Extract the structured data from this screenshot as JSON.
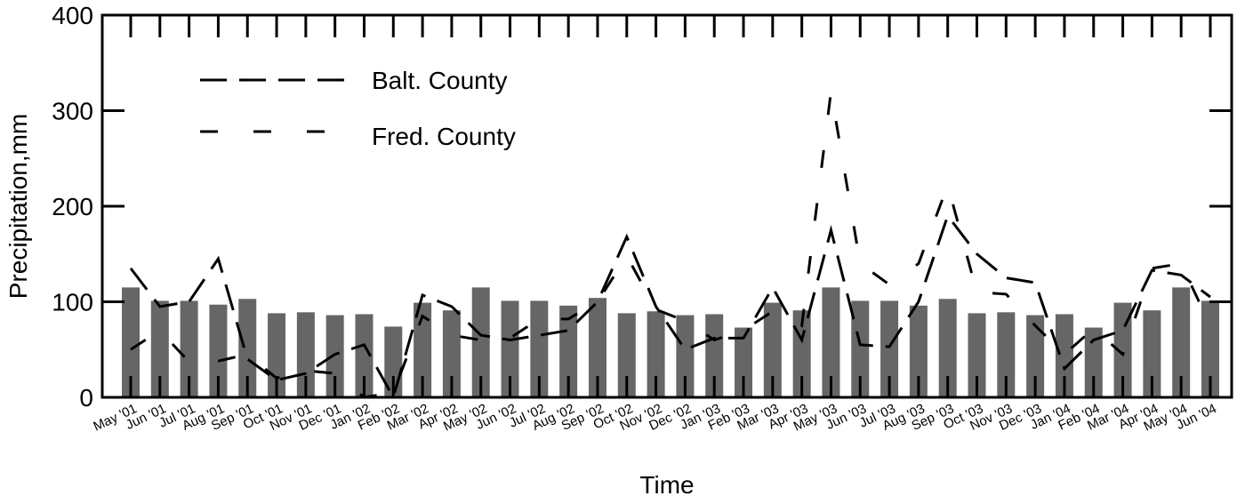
{
  "chart_data": {
    "type": "bar+line",
    "xlabel": "Time",
    "ylabel": "Precipitation,mm",
    "ylim": [
      0,
      400
    ],
    "yticks": [
      "0",
      "100",
      "200",
      "300",
      "400"
    ],
    "grid": false,
    "legend_position": "top-left",
    "categories": [
      "May '01",
      "Jun '01",
      "Jul '01",
      "Aug '01",
      "Sep '01",
      "Oct '01",
      "Nov '01",
      "Dec '01",
      "Jan '02",
      "Feb '02",
      "Mar '02",
      "Apr '02",
      "May '02",
      "Jun '02",
      "Jul '02",
      "Aug '02",
      "Sep '02",
      "Oct '02",
      "Nov '02",
      "Dec '02",
      "Jan '03",
      "Feb '03",
      "Mar '03",
      "Apr '03",
      "May '03",
      "Jun '03",
      "Jul '03",
      "Aug '03",
      "Sep '03",
      "Oct '03",
      "Nov '03",
      "Dec '03",
      "Jan '04",
      "Feb '04",
      "Mar '04",
      "Apr '04",
      "May '04",
      "Jun '04"
    ],
    "bars": {
      "color": "#666666",
      "values": [
        115,
        101,
        101,
        97,
        103,
        88,
        89,
        86,
        87,
        74,
        99,
        91,
        115,
        101,
        101,
        96,
        104,
        88,
        90,
        86,
        87,
        73,
        99,
        91,
        115,
        101,
        101,
        96,
        103,
        88,
        89,
        86,
        87,
        73,
        99,
        91,
        115,
        101
      ]
    },
    "series": [
      {
        "name": "Balt. County",
        "style": "long-dash",
        "values": [
          135,
          95,
          100,
          145,
          40,
          18,
          25,
          45,
          55,
          0,
          107,
          95,
          65,
          60,
          65,
          70,
          100,
          168,
          95,
          50,
          62,
          62,
          115,
          60,
          175,
          55,
          53,
          100,
          190,
          150,
          125,
          120,
          30,
          60,
          70,
          133,
          128,
          105
        ]
      },
      {
        "name": "Fred. County",
        "style": "short-dash",
        "values": [
          50,
          70,
          37,
          38,
          45,
          20,
          28,
          25,
          0,
          5,
          85,
          65,
          60,
          62,
          82,
          82,
          100,
          148,
          92,
          80,
          60,
          70,
          90,
          75,
          320,
          140,
          118,
          140,
          222,
          110,
          108,
          75,
          45,
          72,
          45,
          135,
          140,
          75
        ]
      }
    ]
  }
}
